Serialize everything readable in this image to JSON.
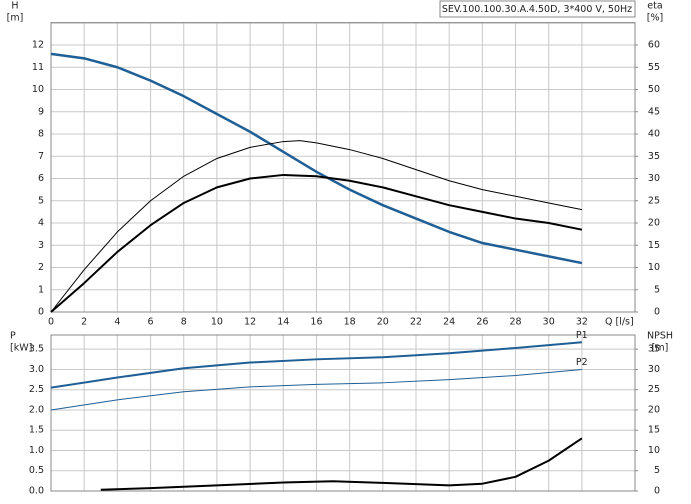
{
  "chart_data": [
    {
      "type": "line",
      "title": "SEV.100.100.30.A.4.50D, 3*400 V, 50Hz",
      "y_label": "H",
      "y_unit": "[m]",
      "y2_label": "eta",
      "y2_unit": "[%]",
      "x_label": "Q [l/s]",
      "xlim": [
        0,
        35.2
      ],
      "xticks": [
        0,
        2,
        4,
        6,
        8,
        10,
        12,
        14,
        16,
        18,
        20,
        22,
        24,
        26,
        28,
        30,
        32
      ],
      "ylim": [
        0,
        13
      ],
      "yticks": [
        0,
        1,
        2,
        3,
        4,
        5,
        6,
        7,
        8,
        9,
        10,
        11,
        12
      ],
      "y2lim": [
        0,
        65
      ],
      "y2ticks": [
        0,
        5,
        10,
        15,
        20,
        25,
        30,
        35,
        40,
        45,
        50,
        55,
        60
      ],
      "grid": true,
      "series": [
        {
          "color": "#1f5f96",
          "axis": "y",
          "x": [
            0,
            2,
            4,
            6,
            8,
            10,
            12,
            14,
            16,
            18,
            20,
            22,
            24,
            26,
            28,
            30,
            32
          ],
          "values": [
            11.6,
            11.4,
            11.0,
            10.4,
            9.7,
            8.9,
            8.1,
            7.2,
            6.3,
            5.5,
            4.8,
            4.2,
            3.6,
            3.1,
            2.8,
            2.5,
            2.2
          ]
        },
        {
          "color": "#000000",
          "axis": "y2",
          "x": [
            0,
            2,
            4,
            6,
            8,
            10,
            12,
            14,
            15,
            16,
            18,
            20,
            22,
            24,
            26,
            28,
            30,
            32
          ],
          "values": [
            0,
            9.5,
            18,
            25,
            30.5,
            34.5,
            37,
            38.3,
            38.5,
            38,
            36.5,
            34.5,
            32,
            29.5,
            27.5,
            26,
            24.5,
            23
          ]
        },
        {
          "color": "#000000",
          "axis": "y2",
          "x": [
            0,
            2,
            4,
            6,
            8,
            10,
            12,
            14,
            16,
            18,
            20,
            22,
            24,
            26,
            28,
            30,
            32
          ],
          "values": [
            0,
            6.5,
            13.5,
            19.5,
            24.5,
            28,
            30,
            30.8,
            30.5,
            29.5,
            28,
            26,
            24,
            22.5,
            21,
            20,
            18.5
          ]
        }
      ]
    },
    {
      "type": "line",
      "y_label": "P",
      "y_unit": "[kW]",
      "y2_label": "NPSH",
      "y2_unit": "[m]",
      "xlim": [
        0,
        35.2
      ],
      "ylim": [
        0,
        3.85
      ],
      "yticks": [
        {
          "value": 0,
          "label": "0.0"
        },
        0.5,
        {
          "value": 1,
          "label": "1.0"
        },
        1.5,
        {
          "value": 2,
          "label": "2.0"
        },
        2.5,
        {
          "value": 3,
          "label": "3.0"
        },
        3.5
      ],
      "y2lim": [
        0,
        38.5
      ],
      "y2ticks": [
        0,
        5,
        10,
        15,
        20,
        25,
        30,
        35
      ],
      "grid": true,
      "series": [
        {
          "name": "P1",
          "color": "#1f5f96",
          "axis": "y",
          "x": [
            0,
            4,
            8,
            12,
            16,
            20,
            24,
            28,
            32
          ],
          "values": [
            2.55,
            2.8,
            3.03,
            3.17,
            3.25,
            3.3,
            3.4,
            3.53,
            3.67
          ]
        },
        {
          "name": "P2",
          "color": "#1f5f96",
          "axis": "y",
          "x": [
            0,
            4,
            8,
            12,
            16,
            20,
            24,
            28,
            32
          ],
          "values": [
            2.0,
            2.25,
            2.45,
            2.57,
            2.63,
            2.67,
            2.75,
            2.85,
            3.0
          ]
        },
        {
          "color": "#000000",
          "axis": "y2",
          "x": [
            3,
            6,
            10,
            14,
            17,
            20,
            24,
            26,
            28,
            30,
            32
          ],
          "values": [
            0.3,
            0.7,
            1.4,
            2.1,
            2.4,
            2.0,
            1.4,
            1.8,
            3.5,
            7.5,
            13
          ]
        }
      ]
    }
  ]
}
